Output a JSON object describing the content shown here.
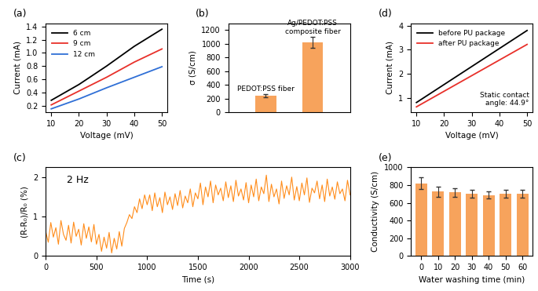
{
  "chart_data": [
    {
      "type": "line",
      "title": "(a)",
      "x_label": "Voltage (mV)",
      "y_label": "Current (mA)",
      "x": [
        10,
        20,
        30,
        40,
        50
      ],
      "series": [
        {
          "name": "6 cm",
          "color": "#000000",
          "values": [
            0.28,
            0.52,
            0.8,
            1.1,
            1.36
          ]
        },
        {
          "name": "9 cm",
          "color": "#e8302a",
          "values": [
            0.21,
            0.42,
            0.63,
            0.86,
            1.06
          ]
        },
        {
          "name": "12 cm",
          "color": "#2f6fd6",
          "values": [
            0.15,
            0.3,
            0.47,
            0.63,
            0.79
          ]
        }
      ],
      "xlim": [
        8,
        52
      ],
      "xticks": [
        10,
        20,
        30,
        40,
        50
      ],
      "ylim": [
        0.1,
        1.45
      ],
      "yticks": [
        0.2,
        0.4,
        0.6,
        0.8,
        1.0,
        1.2,
        1.4
      ],
      "legend": "upper left"
    },
    {
      "type": "bar",
      "title": "(b)",
      "y_label": "σ (S/cm)",
      "categories": [
        "PEDOT:PSS fiber",
        "Ag/PEDOT:PSS\ncomposite fiber"
      ],
      "values": [
        240,
        1020
      ],
      "errors": [
        20,
        80
      ],
      "color": "#f7a35c",
      "ylim": [
        0,
        1300
      ],
      "yticks": [
        0,
        200,
        400,
        600,
        800,
        1000,
        1200
      ],
      "tick_labels": "y"
    },
    {
      "type": "line",
      "title": "(c)",
      "x_label": "Time (s)",
      "y_label": "(R-R₀)/R₀ (%)",
      "annotations": [
        "2 Hz"
      ],
      "x": [
        0,
        25,
        50,
        75,
        100,
        125,
        150,
        175,
        200,
        225,
        250,
        275,
        300,
        325,
        350,
        375,
        400,
        425,
        450,
        475,
        500,
        525,
        550,
        575,
        600,
        625,
        650,
        675,
        700,
        725,
        750,
        775,
        800,
        825,
        850,
        875,
        900,
        925,
        950,
        975,
        1000,
        1025,
        1050,
        1075,
        1100,
        1125,
        1150,
        1175,
        1200,
        1225,
        1250,
        1275,
        1300,
        1325,
        1350,
        1375,
        1400,
        1425,
        1450,
        1475,
        1500,
        1525,
        1550,
        1575,
        1600,
        1625,
        1650,
        1675,
        1700,
        1725,
        1750,
        1775,
        1800,
        1825,
        1850,
        1875,
        1900,
        1925,
        1950,
        1975,
        2000,
        2025,
        2050,
        2075,
        2100,
        2125,
        2150,
        2175,
        2200,
        2225,
        2250,
        2275,
        2300,
        2325,
        2350,
        2375,
        2400,
        2425,
        2450,
        2475,
        2500,
        2525,
        2550,
        2575,
        2600,
        2625,
        2650,
        2675,
        2700,
        2725,
        2750,
        2775,
        2800,
        2825,
        2850,
        2875,
        2900,
        2925,
        2950,
        2975,
        3000
      ],
      "series": [
        {
          "color": "#ff8c1a",
          "values": [
            0.62,
            0.35,
            0.85,
            0.48,
            0.72,
            0.3,
            0.9,
            0.55,
            0.4,
            0.78,
            0.33,
            0.86,
            0.5,
            0.68,
            0.28,
            0.82,
            0.45,
            0.74,
            0.36,
            0.8,
            0.3,
            0.55,
            0.12,
            0.48,
            0.2,
            0.6,
            0.08,
            0.45,
            0.18,
            0.62,
            0.25,
            0.7,
            0.85,
            1.05,
            0.95,
            1.25,
            1.1,
            1.45,
            1.2,
            1.55,
            1.3,
            1.55,
            1.15,
            1.6,
            1.25,
            1.48,
            1.1,
            1.62,
            1.3,
            1.5,
            1.18,
            1.58,
            1.28,
            1.66,
            1.22,
            1.52,
            1.35,
            1.7,
            1.25,
            1.6,
            1.45,
            1.85,
            1.3,
            1.75,
            1.5,
            1.9,
            1.35,
            1.8,
            1.55,
            1.72,
            1.4,
            1.88,
            1.48,
            1.78,
            1.38,
            1.92,
            1.52,
            1.7,
            1.42,
            1.86,
            1.35,
            1.8,
            1.5,
            1.95,
            1.4,
            1.75,
            1.58,
            2.05,
            1.38,
            1.82,
            1.5,
            1.7,
            1.32,
            1.9,
            1.46,
            1.78,
            1.55,
            2.0,
            1.42,
            1.76,
            1.4,
            1.85,
            1.55,
            1.98,
            1.36,
            1.72,
            1.6,
            1.9,
            1.45,
            1.8,
            1.38,
            1.95,
            1.52,
            1.75,
            1.44,
            1.88,
            1.58,
            1.7,
            1.4,
            1.92,
            1.55
          ]
        }
      ],
      "xlim": [
        0,
        3000
      ],
      "xticks": [
        0,
        500,
        1000,
        1500,
        2000,
        2500,
        3000
      ],
      "ylim": [
        0,
        2.25
      ],
      "yticks": [
        0,
        1,
        2
      ]
    },
    {
      "type": "line",
      "title": "(d)",
      "x_label": "Voltage (mV)",
      "y_label": "Current (mA)",
      "annotations": [
        "Static contact\nangle: 44.9°"
      ],
      "x": [
        10,
        20,
        30,
        40,
        50
      ],
      "series": [
        {
          "name": "before PU package",
          "color": "#000000",
          "values": [
            0.8,
            1.55,
            2.3,
            3.05,
            3.8
          ]
        },
        {
          "name": "after PU package",
          "color": "#e8302a",
          "values": [
            0.62,
            1.27,
            1.92,
            2.57,
            3.22
          ]
        }
      ],
      "xlim": [
        8,
        52
      ],
      "xticks": [
        10,
        20,
        30,
        40,
        50
      ],
      "ylim": [
        0.4,
        4.1
      ],
      "yticks": [
        1,
        2,
        3,
        4
      ],
      "legend": "upper left"
    },
    {
      "type": "bar",
      "title": "(e)",
      "x_label": "Water washing time (min)",
      "y_label": "Conductivity (S/cm)",
      "categories": [
        "0",
        "10",
        "20",
        "30",
        "40",
        "50",
        "60"
      ],
      "values": [
        820,
        725,
        715,
        705,
        685,
        700,
        700
      ],
      "errors": [
        65,
        55,
        45,
        45,
        40,
        45,
        45
      ],
      "color": "#f7a35c",
      "ylim": [
        0,
        1000
      ],
      "yticks": [
        0,
        200,
        400,
        600,
        800,
        1000
      ]
    }
  ]
}
